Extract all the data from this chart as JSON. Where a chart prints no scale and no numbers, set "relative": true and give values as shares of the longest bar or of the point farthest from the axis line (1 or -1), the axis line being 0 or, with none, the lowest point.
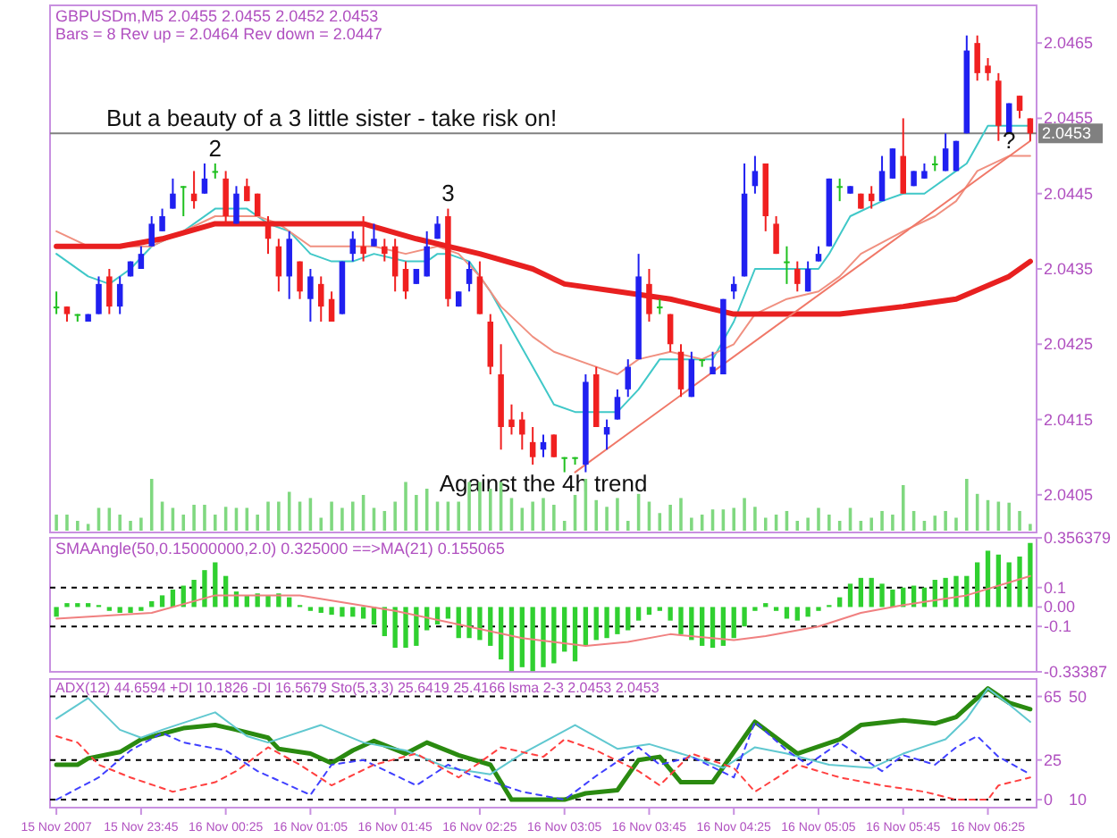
{
  "chart_data": [
    {
      "type": "candlestick",
      "title": "GBPUSDm,M5  2.0455 2.0455 2.0452 2.0453",
      "subtitle": "Bars = 8 Rev up =  2.0464 Rev down = 2.0447",
      "tick_labels": "y",
      "x": [
        "2007-11-15T23:05",
        "2007-11-15T23:10",
        "2007-11-15T23:15",
        "2007-11-15T23:20",
        "2007-11-15T23:25",
        "2007-11-15T23:30",
        "2007-11-15T23:35",
        "2007-11-15T23:40",
        "2007-11-15T23:45",
        "2007-11-15T23:50",
        "2007-11-15T23:55",
        "2007-11-16T00:00",
        "2007-11-16T00:05",
        "2007-11-16T00:10",
        "2007-11-16T00:15",
        "2007-11-16T00:20",
        "2007-11-16T00:25",
        "2007-11-16T00:30",
        "2007-11-16T00:35",
        "2007-11-16T00:40",
        "2007-11-16T00:45",
        "2007-11-16T00:50",
        "2007-11-16T00:55",
        "2007-11-16T01:00",
        "2007-11-16T01:05",
        "2007-11-16T01:10",
        "2007-11-16T01:15",
        "2007-11-16T01:20",
        "2007-11-16T01:25",
        "2007-11-16T01:30",
        "2007-11-16T01:35",
        "2007-11-16T01:40",
        "2007-11-16T01:45",
        "2007-11-16T01:50",
        "2007-11-16T01:55",
        "2007-11-16T02:00",
        "2007-11-16T02:05",
        "2007-11-16T02:10",
        "2007-11-16T02:15",
        "2007-11-16T02:20",
        "2007-11-16T02:25",
        "2007-11-16T02:30",
        "2007-11-16T02:35",
        "2007-11-16T02:40",
        "2007-11-16T02:45",
        "2007-11-16T02:50",
        "2007-11-16T02:55",
        "2007-11-16T03:00",
        "2007-11-16T03:05",
        "2007-11-16T03:10",
        "2007-11-16T03:15",
        "2007-11-16T03:20",
        "2007-11-16T03:25",
        "2007-11-16T03:30",
        "2007-11-16T03:35",
        "2007-11-16T03:40",
        "2007-11-16T03:45",
        "2007-11-16T03:50",
        "2007-11-16T03:55",
        "2007-11-16T04:00",
        "2007-11-16T04:05",
        "2007-11-16T04:10",
        "2007-11-16T04:15",
        "2007-11-16T04:20",
        "2007-11-16T04:25",
        "2007-11-16T04:30",
        "2007-11-16T04:35",
        "2007-11-16T04:40",
        "2007-11-16T04:45",
        "2007-11-16T04:50",
        "2007-11-16T04:55",
        "2007-11-16T05:00",
        "2007-11-16T05:05",
        "2007-11-16T05:10",
        "2007-11-16T05:15",
        "2007-11-16T05:20",
        "2007-11-16T05:25",
        "2007-11-16T05:30",
        "2007-11-16T05:35",
        "2007-11-16T05:40",
        "2007-11-16T05:45",
        "2007-11-16T05:50",
        "2007-11-16T05:55",
        "2007-11-16T06:00",
        "2007-11-16T06:05",
        "2007-11-16T06:10",
        "2007-11-16T06:15",
        "2007-11-16T06:20",
        "2007-11-16T06:25",
        "2007-11-16T06:30",
        "2007-11-16T06:35",
        "2007-11-16T06:40",
        "2007-11-16T06:45"
      ],
      "ohlc": [
        [
          2.043,
          2.0432,
          2.0429,
          2.043
        ],
        [
          2.043,
          2.043,
          2.0428,
          2.0429
        ],
        [
          2.0429,
          2.0429,
          2.0428,
          2.0429
        ],
        [
          2.0428,
          2.0429,
          2.0428,
          2.0429
        ],
        [
          2.0429,
          2.0434,
          2.0429,
          2.0433
        ],
        [
          2.0434,
          2.0435,
          2.0429,
          2.043
        ],
        [
          2.043,
          2.0434,
          2.0429,
          2.0433
        ],
        [
          2.0434,
          2.0436,
          2.0434,
          2.0436
        ],
        [
          2.0435,
          2.0438,
          2.0435,
          2.0437
        ],
        [
          2.0438,
          2.0442,
          2.0438,
          2.0441
        ],
        [
          2.044,
          2.0443,
          2.044,
          2.0442
        ],
        [
          2.0443,
          2.0447,
          2.0443,
          2.0445
        ],
        [
          2.0446,
          2.0446,
          2.0442,
          2.0446
        ],
        [
          2.0445,
          2.0448,
          2.0443,
          2.0444
        ],
        [
          2.0445,
          2.0449,
          2.0445,
          2.0447
        ],
        [
          2.0448,
          2.0449,
          2.0447,
          2.0448
        ],
        [
          2.0447,
          2.0448,
          2.0441,
          2.0442
        ],
        [
          2.0441,
          2.0446,
          2.0441,
          2.0445
        ],
        [
          2.0446,
          2.0447,
          2.0444,
          2.0444
        ],
        [
          2.0445,
          2.0445,
          2.0442,
          2.0442
        ],
        [
          2.0441,
          2.0442,
          2.0437,
          2.0439
        ],
        [
          2.0438,
          2.0439,
          2.0432,
          2.0434
        ],
        [
          2.0434,
          2.044,
          2.0431,
          2.0439
        ],
        [
          2.0436,
          2.0436,
          2.0431,
          2.0432
        ],
        [
          2.0431,
          2.0435,
          2.0428,
          2.0434
        ],
        [
          2.0433,
          2.0434,
          2.0428,
          2.043
        ],
        [
          2.0431,
          2.0432,
          2.0428,
          2.0428
        ],
        [
          2.0429,
          2.0436,
          2.0429,
          2.0436
        ],
        [
          2.0437,
          2.044,
          2.0436,
          2.0439
        ],
        [
          2.0438,
          2.0442,
          2.0436,
          2.0437
        ],
        [
          2.0438,
          2.0441,
          2.0438,
          2.0439
        ],
        [
          2.0438,
          2.0439,
          2.0436,
          2.0437
        ],
        [
          2.0438,
          2.0439,
          2.0432,
          2.0434
        ],
        [
          2.0435,
          2.0436,
          2.0431,
          2.0432
        ],
        [
          2.0433,
          2.0435,
          2.0433,
          2.0435
        ],
        [
          2.0434,
          2.044,
          2.0434,
          2.0438
        ],
        [
          2.0439,
          2.0442,
          2.0439,
          2.0441
        ],
        [
          2.0442,
          2.0443,
          2.043,
          2.0431
        ],
        [
          2.043,
          2.0432,
          2.043,
          2.0432
        ],
        [
          2.0433,
          2.0436,
          2.0432,
          2.0435
        ],
        [
          2.0434,
          2.0436,
          2.0429,
          2.0429
        ],
        [
          2.0428,
          2.0429,
          2.0421,
          2.0422
        ],
        [
          2.0421,
          2.0425,
          2.0411,
          2.0414
        ],
        [
          2.0415,
          2.0417,
          2.0413,
          2.0414
        ],
        [
          2.0415,
          2.0416,
          2.0411,
          2.0413
        ],
        [
          2.0412,
          2.0414,
          2.0409,
          2.041
        ],
        [
          2.0411,
          2.0413,
          2.041,
          2.0412
        ],
        [
          2.0413,
          2.0413,
          2.041,
          2.041
        ],
        [
          2.041,
          2.041,
          2.0408,
          2.041
        ],
        [
          2.041,
          2.041,
          2.0409,
          2.041
        ],
        [
          2.0409,
          2.0421,
          2.0408,
          2.042
        ],
        [
          2.0421,
          2.0422,
          2.0414,
          2.0414
        ],
        [
          2.0413,
          2.0415,
          2.0411,
          2.0414
        ],
        [
          2.0415,
          2.0419,
          2.0415,
          2.0418
        ],
        [
          2.0419,
          2.0423,
          2.0418,
          2.0422
        ],
        [
          2.0423,
          2.0437,
          2.0423,
          2.0434
        ],
        [
          2.0433,
          2.0435,
          2.0428,
          2.0429
        ],
        [
          2.043,
          2.0431,
          2.0429,
          2.043
        ],
        [
          2.0429,
          2.0429,
          2.0424,
          2.0425
        ],
        [
          2.0424,
          2.0425,
          2.0418,
          2.0419
        ],
        [
          2.0418,
          2.0424,
          2.0418,
          2.0423
        ],
        [
          2.0423,
          2.0423,
          2.0422,
          2.0423
        ],
        [
          2.0421,
          2.0424,
          2.0421,
          2.0422
        ],
        [
          2.0421,
          2.0431,
          2.0421,
          2.0431
        ],
        [
          2.0432,
          2.0434,
          2.0431,
          2.0433
        ],
        [
          2.0434,
          2.0449,
          2.0434,
          2.0445
        ],
        [
          2.0446,
          2.045,
          2.0445,
          2.0448
        ],
        [
          2.0449,
          2.0449,
          2.044,
          2.0442
        ],
        [
          2.0441,
          2.0442,
          2.0437,
          2.0437
        ],
        [
          2.0436,
          2.0438,
          2.0433,
          2.0436
        ],
        [
          2.0435,
          2.0436,
          2.0432,
          2.0433
        ],
        [
          2.0432,
          2.0436,
          2.0432,
          2.0435
        ],
        [
          2.0436,
          2.0438,
          2.0436,
          2.0437
        ],
        [
          2.0438,
          2.0447,
          2.0438,
          2.0447
        ],
        [
          2.0446,
          2.0447,
          2.0444,
          2.0446
        ],
        [
          2.0445,
          2.0446,
          2.0445,
          2.0446
        ],
        [
          2.0445,
          2.0445,
          2.0443,
          2.0443
        ],
        [
          2.0445,
          2.0446,
          2.0443,
          2.0444
        ],
        [
          2.0444,
          2.045,
          2.0444,
          2.0448
        ],
        [
          2.0447,
          2.0451,
          2.0447,
          2.0451
        ],
        [
          2.045,
          2.0455,
          2.0445,
          2.0445
        ],
        [
          2.0446,
          2.0448,
          2.0446,
          2.0448
        ],
        [
          2.0447,
          2.0449,
          2.0447,
          2.0448
        ],
        [
          2.0449,
          2.045,
          2.0448,
          2.0449
        ],
        [
          2.0448,
          2.0453,
          2.0448,
          2.0451
        ],
        [
          2.0448,
          2.0452,
          2.0448,
          2.0452
        ],
        [
          2.0453,
          2.0466,
          2.0453,
          2.0464
        ],
        [
          2.0465,
          2.0466,
          2.046,
          2.0461
        ],
        [
          2.0462,
          2.0463,
          2.046,
          2.0461
        ],
        [
          2.046,
          2.0461,
          2.0452,
          2.0454
        ],
        [
          2.0453,
          2.0457,
          2.0453,
          2.0457
        ],
        [
          2.0458,
          2.0458,
          2.0455,
          2.0456
        ],
        [
          2.0455,
          2.0455,
          2.0452,
          2.0453
        ]
      ],
      "colors": [
        "#20c020",
        "#f02020",
        "#20c020",
        "#2020f0",
        "#2020f0",
        "#f02020",
        "#2020f0",
        "#2020f0",
        "#2020f0",
        "#2020f0",
        "#2020f0",
        "#2020f0",
        "#20c020",
        "#f02020",
        "#2020f0",
        "#20c020",
        "#f02020",
        "#2020f0",
        "#f02020",
        "#f02020",
        "#f02020",
        "#f02020",
        "#2020f0",
        "#f02020",
        "#2020f0",
        "#f02020",
        "#f02020",
        "#2020f0",
        "#2020f0",
        "#f02020",
        "#2020f0",
        "#f02020",
        "#f02020",
        "#f02020",
        "#2020f0",
        "#2020f0",
        "#2020f0",
        "#f02020",
        "#2020f0",
        "#2020f0",
        "#f02020",
        "#f02020",
        "#f02020",
        "#f02020",
        "#f02020",
        "#f02020",
        "#2020f0",
        "#f02020",
        "#20c020",
        "#20c020",
        "#2020f0",
        "#f02020",
        "#2020f0",
        "#2020f0",
        "#2020f0",
        "#2020f0",
        "#f02020",
        "#20c020",
        "#f02020",
        "#f02020",
        "#2020f0",
        "#20c020",
        "#2020f0",
        "#2020f0",
        "#2020f0",
        "#2020f0",
        "#2020f0",
        "#f02020",
        "#f02020",
        "#20c020",
        "#f02020",
        "#2020f0",
        "#2020f0",
        "#2020f0",
        "#20c020",
        "#2020f0",
        "#f02020",
        "#f02020",
        "#2020f0",
        "#2020f0",
        "#f02020",
        "#2020f0",
        "#2020f0",
        "#20c020",
        "#2020f0",
        "#2020f0",
        "#2020f0",
        "#f02020",
        "#f02020",
        "#f02020",
        "#2020f0",
        "#f02020",
        "#f02020"
      ],
      "series": [
        {
          "type": "line",
          "color": "#40c8c8",
          "x": [
            "2007-11-15T23:05",
            "2007-11-15T23:20",
            "2007-11-15T23:30",
            "2007-11-15T23:40",
            "2007-11-15T23:50",
            "2007-11-16T00:05",
            "2007-11-16T00:20",
            "2007-11-16T00:35",
            "2007-11-16T00:45",
            "2007-11-16T00:55",
            "2007-11-16T01:05",
            "2007-11-16T01:15",
            "2007-11-16T01:25",
            "2007-11-16T01:35",
            "2007-11-16T01:50",
            "2007-11-16T02:00",
            "2007-11-16T02:05",
            "2007-11-16T02:10",
            "2007-11-16T02:20",
            "2007-11-16T02:30",
            "2007-11-16T02:40",
            "2007-11-16T02:50",
            "2007-11-16T03:00",
            "2007-11-16T03:10",
            "2007-11-16T03:20",
            "2007-11-16T03:30",
            "2007-11-16T03:40",
            "2007-11-16T03:50",
            "2007-11-16T03:55",
            "2007-11-16T04:05",
            "2007-11-16T04:15",
            "2007-11-16T04:25",
            "2007-11-16T04:35",
            "2007-11-16T04:50",
            "2007-11-16T05:05",
            "2007-11-16T05:10",
            "2007-11-16T05:20",
            "2007-11-16T05:35",
            "2007-11-16T05:45",
            "2007-11-16T05:55",
            "2007-11-16T06:10",
            "2007-11-16T06:15",
            "2007-11-16T06:25",
            "2007-11-16T06:35",
            "2007-11-16T06:45"
          ],
          "values": [
            2.0437,
            2.0434,
            2.0433,
            2.0435,
            2.0438,
            2.044,
            2.0443,
            2.0443,
            2.0441,
            2.044,
            2.0437,
            2.0436,
            2.0436,
            2.0437,
            2.0436,
            2.0436,
            2.0437,
            2.0437,
            2.0436,
            2.0432,
            2.0427,
            2.0422,
            2.0417,
            2.0416,
            2.0416,
            2.0416,
            2.0419,
            2.0423,
            2.0423,
            2.0423,
            2.0423,
            2.0428,
            2.0435,
            2.0435,
            2.0435,
            2.0437,
            2.0442,
            2.0444,
            2.0445,
            2.0445,
            2.0448,
            2.0449,
            2.0454,
            2.0454,
            2.0454
          ]
        },
        {
          "type": "line",
          "color": "#f09080",
          "x": [
            "2007-11-15T23:05",
            "2007-11-15T23:20",
            "2007-11-15T23:35",
            "2007-11-15T23:50",
            "2007-11-16T00:05",
            "2007-11-16T00:20",
            "2007-11-16T00:40",
            "2007-11-16T00:50",
            "2007-11-16T01:05",
            "2007-11-16T01:20",
            "2007-11-16T01:35",
            "2007-11-16T01:50",
            "2007-11-16T02:05",
            "2007-11-16T02:15",
            "2007-11-16T02:25",
            "2007-11-16T02:35",
            "2007-11-16T02:50",
            "2007-11-16T03:00",
            "2007-11-16T03:20",
            "2007-11-16T03:30",
            "2007-11-16T03:40",
            "2007-11-16T03:55",
            "2007-11-16T04:10",
            "2007-11-16T04:25",
            "2007-11-16T04:35",
            "2007-11-16T04:50",
            "2007-11-16T05:05",
            "2007-11-16T05:15",
            "2007-11-16T05:25",
            "2007-11-16T05:45",
            "2007-11-16T06:00",
            "2007-11-16T06:10",
            "2007-11-16T06:20",
            "2007-11-16T06:35",
            "2007-11-16T06:45"
          ],
          "values": [
            2.044,
            2.0438,
            2.0438,
            2.0438,
            2.044,
            2.0442,
            2.0442,
            2.0441,
            2.0438,
            2.0438,
            2.0438,
            2.0437,
            2.0438,
            2.0437,
            2.0434,
            2.043,
            2.0426,
            2.0424,
            2.0422,
            2.0421,
            2.0423,
            2.0424,
            2.0423,
            2.0425,
            2.0429,
            2.0431,
            2.0432,
            2.0434,
            2.0437,
            2.044,
            2.0442,
            2.0444,
            2.0448,
            2.045,
            2.045
          ]
        },
        {
          "type": "line",
          "color": "#e82020",
          "x": [
            "2007-11-15T23:05",
            "2007-11-15T23:35",
            "2007-11-15T23:55",
            "2007-11-16T00:20",
            "2007-11-16T00:50",
            "2007-11-16T01:10",
            "2007-11-16T01:30",
            "2007-11-16T01:55",
            "2007-11-16T02:25",
            "2007-11-16T02:50",
            "2007-11-16T03:05",
            "2007-11-16T03:30",
            "2007-11-16T03:55",
            "2007-11-16T04:25",
            "2007-11-16T04:50",
            "2007-11-16T05:15",
            "2007-11-16T05:45",
            "2007-11-16T06:10",
            "2007-11-16T06:35",
            "2007-11-16T06:45"
          ],
          "values": [
            2.0438,
            2.0438,
            2.0439,
            2.0441,
            2.0441,
            2.0441,
            2.0441,
            2.0439,
            2.0437,
            2.0435,
            2.0433,
            2.0432,
            2.0431,
            2.0429,
            2.0429,
            2.0429,
            2.043,
            2.0431,
            2.0434,
            2.0436
          ]
        },
        {
          "type": "line",
          "color": "#f07868",
          "x": [
            "2007-11-16T03:10",
            "2007-11-16T06:45"
          ],
          "values": [
            2.0408,
            2.0452
          ]
        }
      ],
      "xlim": [
        "2007-11-15T23:02",
        "2007-11-16T06:48"
      ],
      "ylim": [
        2.04,
        2.047
      ],
      "yticks": [
        2.0405,
        2.0415,
        2.0425,
        2.0435,
        2.0445,
        2.0455,
        2.0465
      ],
      "ref_lines": [
        {
          "axis": "y",
          "value": 2.0453,
          "label": "2.0453",
          "color": "#808080"
        }
      ],
      "annotations": [
        {
          "text": "But a beauty of a 3 little sister - take risk on!",
          "x": "2007-11-16T01:15",
          "y": 2.0454
        },
        {
          "text": "2",
          "x": "2007-11-16T00:20",
          "y": 2.045
        },
        {
          "text": "3",
          "x": "2007-11-16T02:10",
          "y": 2.0444
        },
        {
          "text": "?",
          "x": "2007-11-16T06:35",
          "y": 2.0451
        },
        "Against the 4h trend"
      ]
    },
    {
      "type": "bar",
      "relative": true,
      "tick_labels": false,
      "color": "#80d880",
      "xlim": [
        "2007-11-15T23:02",
        "2007-11-16T06:48"
      ],
      "x": [
        "2007-11-15T23:05",
        "2007-11-15T23:10",
        "2007-11-15T23:15",
        "2007-11-15T23:20",
        "2007-11-15T23:25",
        "2007-11-15T23:30",
        "2007-11-15T23:35",
        "2007-11-15T23:40",
        "2007-11-15T23:45",
        "2007-11-15T23:50",
        "2007-11-15T23:55",
        "2007-11-16T00:00",
        "2007-11-16T00:05",
        "2007-11-16T00:10",
        "2007-11-16T00:15",
        "2007-11-16T00:20",
        "2007-11-16T00:25",
        "2007-11-16T00:30",
        "2007-11-16T00:35",
        "2007-11-16T00:40",
        "2007-11-16T00:45",
        "2007-11-16T00:50",
        "2007-11-16T00:55",
        "2007-11-16T01:00",
        "2007-11-16T01:05",
        "2007-11-16T01:10",
        "2007-11-16T01:15",
        "2007-11-16T01:20",
        "2007-11-16T01:25",
        "2007-11-16T01:30",
        "2007-11-16T01:35",
        "2007-11-16T01:40",
        "2007-11-16T01:45",
        "2007-11-16T01:50",
        "2007-11-16T01:55",
        "2007-11-16T02:00",
        "2007-11-16T02:05",
        "2007-11-16T02:10",
        "2007-11-16T02:15",
        "2007-11-16T02:20",
        "2007-11-16T02:25",
        "2007-11-16T02:30",
        "2007-11-16T02:35",
        "2007-11-16T02:40",
        "2007-11-16T02:45",
        "2007-11-16T02:50",
        "2007-11-16T02:55",
        "2007-11-16T03:00",
        "2007-11-16T03:05",
        "2007-11-16T03:10",
        "2007-11-16T03:15",
        "2007-11-16T03:20",
        "2007-11-16T03:25",
        "2007-11-16T03:30",
        "2007-11-16T03:35",
        "2007-11-16T03:40",
        "2007-11-16T03:45",
        "2007-11-16T03:50",
        "2007-11-16T03:55",
        "2007-11-16T04:00",
        "2007-11-16T04:05",
        "2007-11-16T04:10",
        "2007-11-16T04:15",
        "2007-11-16T04:20",
        "2007-11-16T04:25",
        "2007-11-16T04:30",
        "2007-11-16T04:35",
        "2007-11-16T04:40",
        "2007-11-16T04:45",
        "2007-11-16T04:50",
        "2007-11-16T04:55",
        "2007-11-16T05:00",
        "2007-11-16T05:05",
        "2007-11-16T05:10",
        "2007-11-16T05:15",
        "2007-11-16T05:20",
        "2007-11-16T05:25",
        "2007-11-16T05:30",
        "2007-11-16T05:35",
        "2007-11-16T05:40",
        "2007-11-16T05:45",
        "2007-11-16T05:50",
        "2007-11-16T05:55",
        "2007-11-16T06:00",
        "2007-11-16T06:05",
        "2007-11-16T06:10",
        "2007-11-16T06:15",
        "2007-11-16T06:20",
        "2007-11-16T06:25",
        "2007-11-16T06:30",
        "2007-11-16T06:35",
        "2007-11-16T06:40",
        "2007-11-16T06:45"
      ],
      "values": [
        0.31,
        0.31,
        0.19,
        0.13,
        0.44,
        0.44,
        0.31,
        0.19,
        0.25,
        1,
        0.56,
        0.44,
        0.31,
        0.5,
        0.5,
        0.31,
        0.46,
        0.44,
        0.44,
        0.31,
        0.56,
        0.56,
        0.75,
        0.56,
        0.63,
        0.25,
        0.56,
        0.44,
        0.56,
        0.69,
        0.44,
        0.38,
        0.56,
        0.94,
        0.69,
        0.81,
        0.56,
        0.56,
        0.56,
        0.94,
        0.94,
        0.81,
        0.94,
        0.63,
        0.44,
        0.56,
        0.63,
        0.5,
        0.19,
        0.69,
        1,
        0.59,
        0.46,
        0.63,
        0.19,
        0.71,
        0.56,
        0.34,
        0.5,
        0.63,
        0.25,
        0.31,
        0.41,
        0.41,
        0.44,
        0.63,
        0.46,
        0.25,
        0.31,
        0.38,
        0.19,
        0.25,
        0.44,
        0.31,
        0.19,
        0.44,
        0.19,
        0.25,
        0.38,
        0.31,
        0.88,
        0.38,
        0.19,
        0.29,
        0.38,
        0.25,
        1,
        0.71,
        0.59,
        0.56,
        0.54,
        0.38,
        0.13
      ]
    },
    {
      "type": "bar",
      "title": "SMAAngle(50,0.15000000,2.0) 0.325000  ==>MA(21) 0.155065",
      "tick_labels": "y",
      "xlim": [
        "2007-11-15T23:02",
        "2007-11-16T06:48"
      ],
      "x": [
        "2007-11-15T23:05",
        "2007-11-15T23:10",
        "2007-11-15T23:15",
        "2007-11-15T23:20",
        "2007-11-15T23:25",
        "2007-11-15T23:30",
        "2007-11-15T23:35",
        "2007-11-15T23:40",
        "2007-11-15T23:45",
        "2007-11-15T23:50",
        "2007-11-15T23:55",
        "2007-11-16T00:00",
        "2007-11-16T00:05",
        "2007-11-16T00:10",
        "2007-11-16T00:15",
        "2007-11-16T00:20",
        "2007-11-16T00:25",
        "2007-11-16T00:30",
        "2007-11-16T00:35",
        "2007-11-16T00:40",
        "2007-11-16T00:45",
        "2007-11-16T00:50",
        "2007-11-16T00:55",
        "2007-11-16T01:00",
        "2007-11-16T01:05",
        "2007-11-16T01:10",
        "2007-11-16T01:15",
        "2007-11-16T01:20",
        "2007-11-16T01:25",
        "2007-11-16T01:30",
        "2007-11-16T01:35",
        "2007-11-16T01:40",
        "2007-11-16T01:45",
        "2007-11-16T01:50",
        "2007-11-16T01:55",
        "2007-11-16T02:00",
        "2007-11-16T02:05",
        "2007-11-16T02:10",
        "2007-11-16T02:15",
        "2007-11-16T02:20",
        "2007-11-16T02:25",
        "2007-11-16T02:30",
        "2007-11-16T02:35",
        "2007-11-16T02:40",
        "2007-11-16T02:45",
        "2007-11-16T02:50",
        "2007-11-16T02:55",
        "2007-11-16T03:00",
        "2007-11-16T03:05",
        "2007-11-16T03:10",
        "2007-11-16T03:15",
        "2007-11-16T03:20",
        "2007-11-16T03:25",
        "2007-11-16T03:30",
        "2007-11-16T03:35",
        "2007-11-16T03:40",
        "2007-11-16T03:45",
        "2007-11-16T03:50",
        "2007-11-16T03:55",
        "2007-11-16T04:00",
        "2007-11-16T04:05",
        "2007-11-16T04:10",
        "2007-11-16T04:15",
        "2007-11-16T04:20",
        "2007-11-16T04:25",
        "2007-11-16T04:30",
        "2007-11-16T04:35",
        "2007-11-16T04:40",
        "2007-11-16T04:45",
        "2007-11-16T04:50",
        "2007-11-16T04:55",
        "2007-11-16T05:00",
        "2007-11-16T05:05",
        "2007-11-16T05:10",
        "2007-11-16T05:15",
        "2007-11-16T05:20",
        "2007-11-16T05:25",
        "2007-11-16T05:30",
        "2007-11-16T05:35",
        "2007-11-16T05:40",
        "2007-11-16T05:45",
        "2007-11-16T05:50",
        "2007-11-16T05:55",
        "2007-11-16T06:00",
        "2007-11-16T06:05",
        "2007-11-16T06:10",
        "2007-11-16T06:15",
        "2007-11-16T06:20",
        "2007-11-16T06:25",
        "2007-11-16T06:30",
        "2007-11-16T06:35",
        "2007-11-16T06:40",
        "2007-11-16T06:45"
      ],
      "series": [
        {
          "type": "bar",
          "color": "#30d030",
          "values": [
            -0.05,
            0.02,
            0.02,
            0.02,
            0.01,
            -0.02,
            -0.03,
            -0.03,
            -0.02,
            0.03,
            0.06,
            0.09,
            0.11,
            0.14,
            0.19,
            0.23,
            0.16,
            0.08,
            0.06,
            0.07,
            0.06,
            0.07,
            0.05,
            0.01,
            -0.02,
            -0.03,
            -0.04,
            -0.05,
            -0.05,
            -0.06,
            -0.09,
            -0.15,
            -0.21,
            -0.21,
            -0.2,
            -0.12,
            -0.09,
            -0.06,
            -0.16,
            -0.16,
            -0.17,
            -0.2,
            -0.27,
            -0.33,
            -0.31,
            -0.33,
            -0.31,
            -0.29,
            -0.23,
            -0.28,
            -0.2,
            -0.17,
            -0.16,
            -0.14,
            -0.12,
            -0.07,
            -0.04,
            -0.02,
            -0.07,
            -0.14,
            -0.17,
            -0.2,
            -0.21,
            -0.2,
            -0.16,
            -0.1,
            -0.02,
            0.02,
            -0.02,
            -0.06,
            -0.07,
            -0.05,
            -0.02,
            0.01,
            0.05,
            0.12,
            0.15,
            0.15,
            0.12,
            0.09,
            0.1,
            0.11,
            0.1,
            0.14,
            0.15,
            0.16,
            0.16,
            0.23,
            0.29,
            0.27,
            0.23,
            0.26,
            0.33
          ]
        },
        {
          "type": "line",
          "color": "#f08080",
          "x": [
            "2007-11-15T23:05",
            "2007-11-15T23:50",
            "2007-11-16T00:20",
            "2007-11-16T01:00",
            "2007-11-16T01:45",
            "2007-11-16T02:15",
            "2007-11-16T02:45",
            "2007-11-16T03:15",
            "2007-11-16T03:35",
            "2007-11-16T03:55",
            "2007-11-16T04:25",
            "2007-11-16T04:40",
            "2007-11-16T05:05",
            "2007-11-16T05:25",
            "2007-11-16T05:45",
            "2007-11-16T06:15",
            "2007-11-16T06:45"
          ],
          "values": [
            -0.06,
            -0.03,
            0.06,
            0.06,
            -0.02,
            -0.09,
            -0.16,
            -0.2,
            -0.18,
            -0.14,
            -0.17,
            -0.15,
            -0.1,
            -0.03,
            0.01,
            0.06,
            0.16
          ]
        }
      ],
      "ylim": [
        -0.33387,
        0.356379
      ],
      "yticks": [
        -0.33387,
        -0.1,
        {
          "value": 0,
          "label": "0.00"
        },
        0.1,
        0.356379
      ],
      "ref_lines": [
        {
          "axis": "y",
          "value": 0.1,
          "color": "#000000",
          "line_style": "dashed"
        },
        {
          "axis": "y",
          "value": -0.1,
          "color": "#000000",
          "line_style": "dashed"
        }
      ]
    },
    {
      "type": "line",
      "title": "ADX(12) 44.6594 +DI 10.1826 -DI 16.5679  Sto(5,3,3) 25.6419 25.4166  lsma 2-3 2.0453 2.0453",
      "xlim": [
        "2007-11-15T23:02",
        "2007-11-16T06:48"
      ],
      "xticks": [
        {
          "value": "2007-11-15T23:05",
          "label": "15 Nov 2007"
        },
        {
          "value": "2007-11-15T23:45",
          "label": "15 Nov 23:45"
        },
        {
          "value": "2007-11-16T00:25",
          "label": "16 Nov 00:25"
        },
        {
          "value": "2007-11-16T01:05",
          "label": "16 Nov 01:05"
        },
        {
          "value": "2007-11-16T01:45",
          "label": "16 Nov 01:45"
        },
        {
          "value": "2007-11-16T02:25",
          "label": "16 Nov 02:25"
        },
        {
          "value": "2007-11-16T03:05",
          "label": "16 Nov 03:05"
        },
        {
          "value": "2007-11-16T03:45",
          "label": "16 Nov 03:45"
        },
        {
          "value": "2007-11-16T04:25",
          "label": "16 Nov 04:25"
        },
        {
          "value": "2007-11-16T05:05",
          "label": "16 Nov 05:05"
        },
        {
          "value": "2007-11-16T05:45",
          "label": "16 Nov 05:45"
        },
        {
          "value": "2007-11-16T06:25",
          "label": "16 Nov 06:25"
        }
      ],
      "ylim": [
        -5,
        76
      ],
      "yticks": [
        0,
        25,
        65
      ],
      "y2lim": [
        6.92,
        56.77
      ],
      "y2ticks": [
        10,
        50
      ],
      "ref_lines": [
        {
          "axis": "y",
          "value": 65,
          "color": "#000000",
          "line_style": "dashed"
        },
        {
          "axis": "y",
          "value": 25,
          "color": "#000000",
          "line_style": "dashed"
        },
        {
          "axis": "y",
          "value": 0,
          "color": "#000000",
          "line_style": "dashed"
        }
      ],
      "series": [
        {
          "color": "#2a8a10",
          "x": [
            "2007-11-15T23:05",
            "2007-11-15T23:15",
            "2007-11-15T23:20",
            "2007-11-15T23:35",
            "2007-11-15T23:45",
            "2007-11-16T00:05",
            "2007-11-16T00:20",
            "2007-11-16T00:30",
            "2007-11-16T00:45",
            "2007-11-16T00:50",
            "2007-11-16T01:05",
            "2007-11-16T01:15",
            "2007-11-16T01:25",
            "2007-11-16T01:35",
            "2007-11-16T01:50",
            "2007-11-16T02:00",
            "2007-11-16T02:15",
            "2007-11-16T02:30",
            "2007-11-16T02:40",
            "2007-11-16T02:55",
            "2007-11-16T03:05",
            "2007-11-16T03:15",
            "2007-11-16T03:30",
            "2007-11-16T03:40",
            "2007-11-16T03:50",
            "2007-11-16T04:00",
            "2007-11-16T04:15",
            "2007-11-16T04:35",
            "2007-11-16T04:55",
            "2007-11-16T05:15",
            "2007-11-16T05:25",
            "2007-11-16T05:45",
            "2007-11-16T06:00",
            "2007-11-16T06:10",
            "2007-11-16T06:25",
            "2007-11-16T06:35",
            "2007-11-16T06:45"
          ],
          "values": [
            22,
            22,
            26,
            30,
            38,
            45,
            47,
            44,
            39,
            32,
            29,
            23,
            31,
            37,
            29,
            36,
            28,
            22,
            0,
            0,
            0,
            4,
            6,
            25,
            27,
            11,
            11,
            49,
            29,
            38,
            47,
            50,
            48,
            52,
            70,
            61,
            57
          ]
        },
        {
          "color": "#60c8d0",
          "x": [
            "2007-11-15T23:05",
            "2007-11-15T23:20",
            "2007-11-15T23:35",
            "2007-11-15T23:45",
            "2007-11-15T23:55",
            "2007-11-16T00:20",
            "2007-11-16T00:35",
            "2007-11-16T00:45",
            "2007-11-16T01:10",
            "2007-11-16T01:30",
            "2007-11-16T01:50",
            "2007-11-16T02:10",
            "2007-11-16T02:30",
            "2007-11-16T02:45",
            "2007-11-16T03:10",
            "2007-11-16T03:30",
            "2007-11-16T03:45",
            "2007-11-16T04:05",
            "2007-11-16T04:20",
            "2007-11-16T04:35",
            "2007-11-16T04:50",
            "2007-11-16T05:10",
            "2007-11-16T05:30",
            "2007-11-16T05:45",
            "2007-11-16T06:05",
            "2007-11-16T06:15",
            "2007-11-16T06:25",
            "2007-11-16T06:35",
            "2007-11-16T06:45"
          ],
          "values": [
            51,
            64,
            44,
            39,
            44,
            55,
            40,
            36,
            47,
            36,
            31,
            20,
            16,
            29,
            47,
            32,
            35,
            27,
            20,
            33,
            29,
            22,
            20,
            29,
            38,
            51,
            70,
            60,
            49
          ]
        },
        {
          "color": "#4040ff",
          "line_style": "dashed",
          "x": [
            "2007-11-15T23:05",
            "2007-11-15T23:25",
            "2007-11-15T23:40",
            "2007-11-15T23:55",
            "2007-11-16T00:05",
            "2007-11-16T00:25",
            "2007-11-16T00:40",
            "2007-11-16T01:05",
            "2007-11-16T01:15",
            "2007-11-16T01:30",
            "2007-11-16T01:55",
            "2007-11-16T02:10",
            "2007-11-16T02:20",
            "2007-11-16T02:45",
            "2007-11-16T03:05",
            "2007-11-16T03:20",
            "2007-11-16T03:40",
            "2007-11-16T03:50",
            "2007-11-16T04:05",
            "2007-11-16T04:25",
            "2007-11-16T04:35",
            "2007-11-16T04:50",
            "2007-11-16T05:00",
            "2007-11-16T05:15",
            "2007-11-16T05:35",
            "2007-11-16T05:45",
            "2007-11-16T06:00",
            "2007-11-16T06:10",
            "2007-11-16T06:20",
            "2007-11-16T06:30",
            "2007-11-16T06:45"
          ],
          "values": [
            0,
            14,
            31,
            42,
            36,
            31,
            18,
            3,
            22,
            25,
            9,
            22,
            16,
            5,
            0,
            15,
            33,
            22,
            27,
            14,
            49,
            31,
            22,
            36,
            18,
            28,
            22,
            33,
            40,
            27,
            16
          ]
        },
        {
          "color": "#ff4040",
          "line_style": "dashed",
          "x": [
            "2007-11-15T23:05",
            "2007-11-15T23:15",
            "2007-11-15T23:25",
            "2007-11-15T23:40",
            "2007-11-16T00:00",
            "2007-11-16T00:20",
            "2007-11-16T00:30",
            "2007-11-16T00:45",
            "2007-11-16T01:00",
            "2007-11-16T01:15",
            "2007-11-16T01:35",
            "2007-11-16T01:55",
            "2007-11-16T02:15",
            "2007-11-16T02:35",
            "2007-11-16T02:55",
            "2007-11-16T03:05",
            "2007-11-16T03:20",
            "2007-11-16T03:40",
            "2007-11-16T03:50",
            "2007-11-16T04:05",
            "2007-11-16T04:25",
            "2007-11-16T04:35",
            "2007-11-16T04:55",
            "2007-11-16T05:15",
            "2007-11-16T05:35",
            "2007-11-16T05:55",
            "2007-11-16T06:10",
            "2007-11-16T06:25",
            "2007-11-16T06:30",
            "2007-11-16T06:45"
          ],
          "values": [
            40,
            36,
            22,
            14,
            5,
            11,
            18,
            33,
            22,
            9,
            22,
            29,
            14,
            33,
            27,
            38,
            31,
            18,
            9,
            29,
            20,
            5,
            22,
            14,
            9,
            5,
            0,
            0,
            9,
            14
          ]
        }
      ]
    }
  ]
}
